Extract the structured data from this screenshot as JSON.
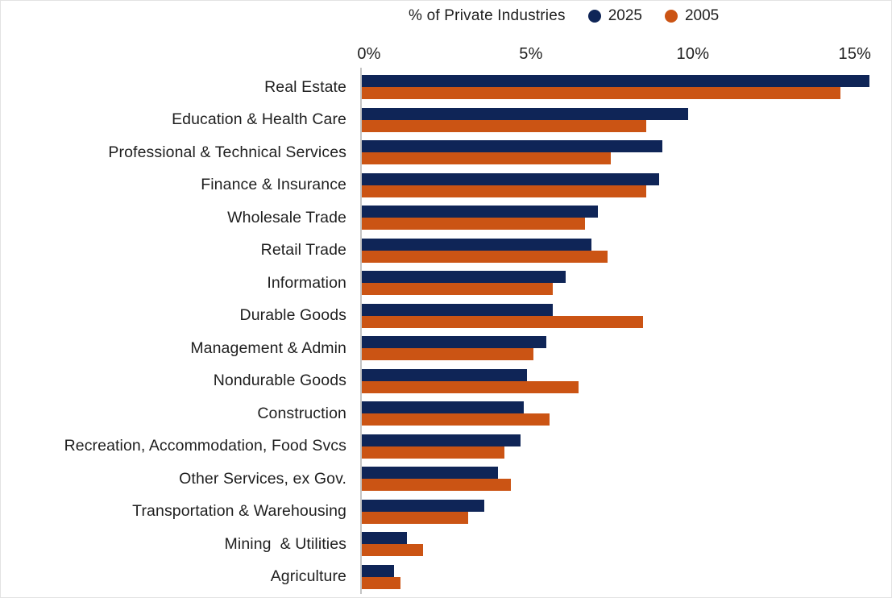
{
  "chart_data": {
    "type": "bar",
    "orientation": "horizontal",
    "title": "% of Private Industries",
    "legend": [
      {
        "label": "2025",
        "color": "#0f2557"
      },
      {
        "label": "2005",
        "color": "#cb5414"
      }
    ],
    "colors": {
      "2025": "#0f2557",
      "2005": "#cb5414"
    },
    "categories": [
      "Real Estate",
      "Education & Health Care",
      "Professional & Technical Services",
      "Finance & Insurance",
      "Wholesale Trade",
      "Retail Trade",
      "Information",
      "Durable Goods",
      "Management & Admin",
      "Nondurable Goods",
      "Construction",
      "Recreation, Accommodation, Food Svcs",
      "Other Services, ex Gov.",
      "Transportation & Warehousing",
      "Mining  & Utilities",
      "Agriculture"
    ],
    "series": [
      {
        "name": "2025",
        "values": [
          15.7,
          10.1,
          9.3,
          9.2,
          7.3,
          7.1,
          6.3,
          5.9,
          5.7,
          5.1,
          5.0,
          4.9,
          4.2,
          3.8,
          1.4,
          1.0
        ]
      },
      {
        "name": "2005",
        "values": [
          14.8,
          8.8,
          7.7,
          8.8,
          6.9,
          7.6,
          5.9,
          8.7,
          5.3,
          6.7,
          5.8,
          4.4,
          4.6,
          3.3,
          1.9,
          1.2
        ]
      }
    ],
    "x_ticks": [
      "0%",
      "5%",
      "10%",
      "15%"
    ],
    "x_tick_values": [
      0,
      5,
      10,
      15
    ],
    "xlim": [
      0,
      16
    ],
    "grid": false,
    "legend_position": "top",
    "axis_line_color": "#c4c4c4",
    "text_color": "#1f1f1f"
  }
}
